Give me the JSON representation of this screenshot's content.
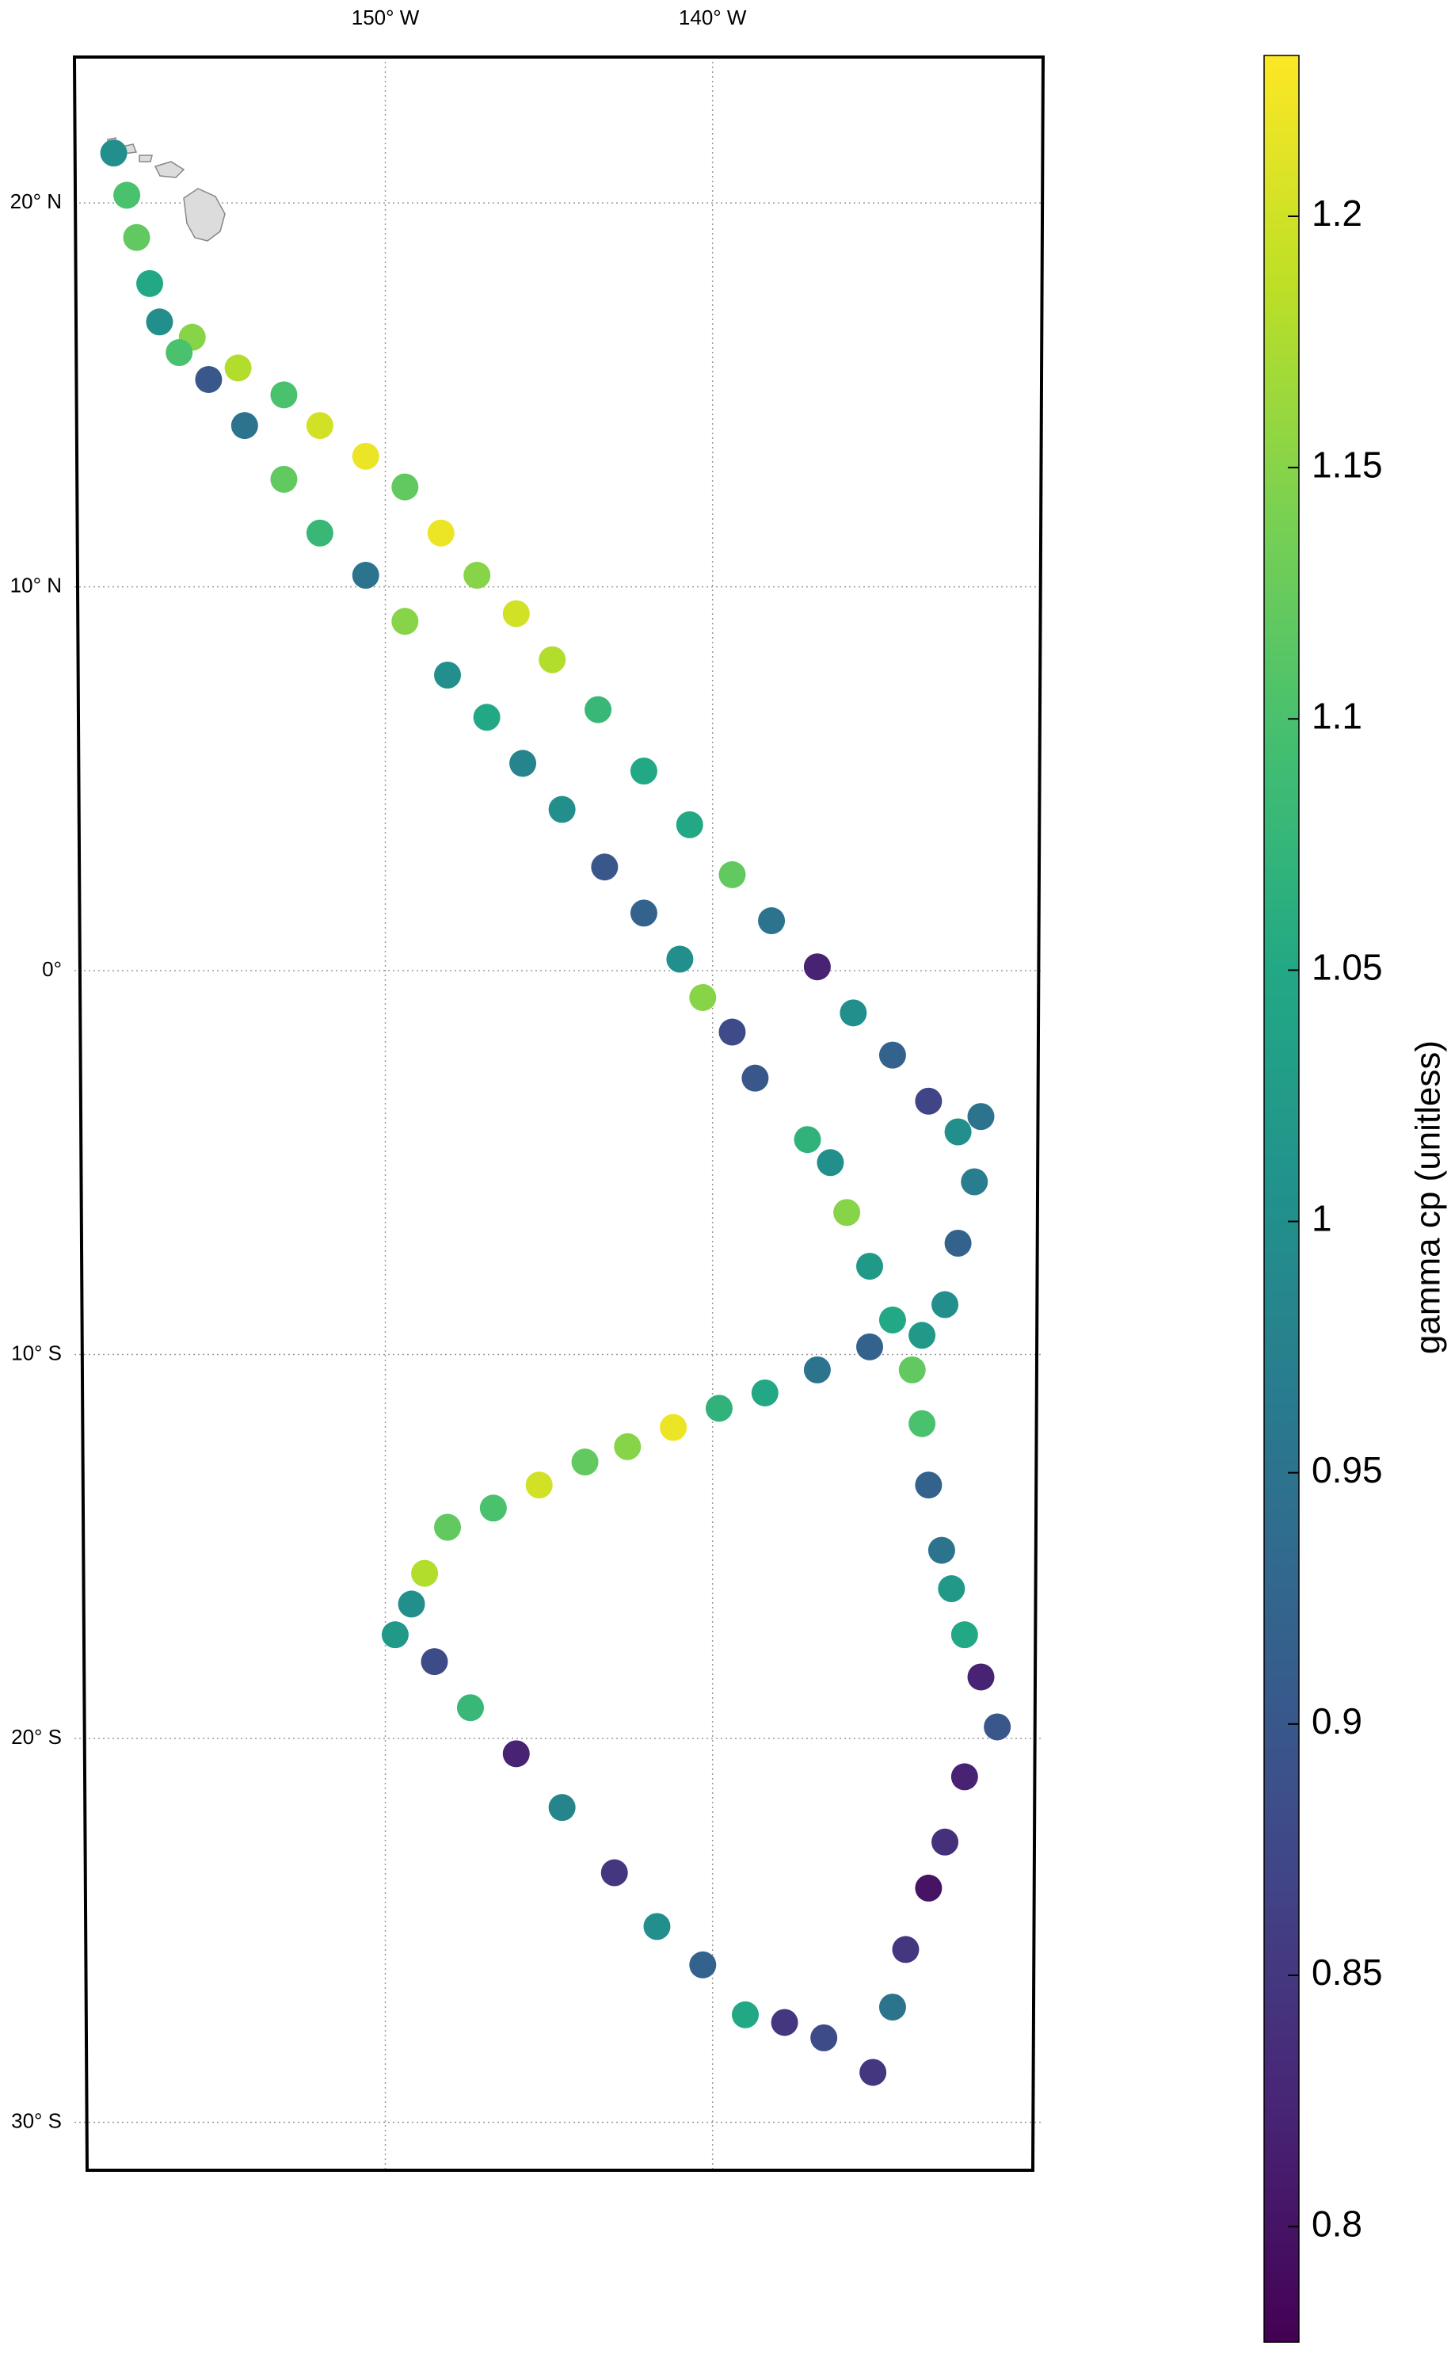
{
  "chart_data": {
    "type": "scatter",
    "colorbar_label": "gamma cp (unitless)",
    "colormap": "viridis",
    "grid": true,
    "xlim": [
      -159.5,
      -129.9
    ],
    "ylim": [
      -31.25,
      23.8
    ],
    "clim": [
      0.777,
      1.232
    ],
    "xticks": [
      {
        "value": -150,
        "label": "150° W"
      },
      {
        "value": -140,
        "label": "140° W"
      }
    ],
    "yticks": [
      {
        "value": 20,
        "label": "20° N"
      },
      {
        "value": 10,
        "label": "10° N"
      },
      {
        "value": 0,
        "label": "0°"
      },
      {
        "value": -10,
        "label": "10° S"
      },
      {
        "value": -20,
        "label": "20° S"
      },
      {
        "value": -30,
        "label": "30° S"
      }
    ],
    "cticks": [
      0.8,
      0.85,
      0.9,
      0.95,
      1,
      1.05,
      1.1,
      1.15,
      1.2
    ],
    "x": [
      -158.3,
      -157.9,
      -157.6,
      -157.2,
      -156.9,
      -155.9,
      -154.5,
      -153.1,
      -152.0,
      -150.6,
      -149.4,
      -148.3,
      -147.2,
      -146.0,
      -144.9,
      -143.5,
      -142.1,
      -140.7,
      -139.4,
      -138.2,
      -136.8,
      -135.7,
      -134.5,
      -133.4,
      -132.5,
      -131.8,
      -132.0,
      -132.5,
      -132.9,
      -133.6,
      -135.2,
      -136.8,
      -138.4,
      -139.8,
      -141.2,
      -142.6,
      -143.9,
      -145.3,
      -146.7,
      -148.1,
      -148.8,
      -149.2,
      -149.7,
      -148.5,
      -147.4,
      -146.0,
      -144.6,
      -143.0,
      -141.7,
      -140.3,
      -139.0,
      -137.8,
      -136.6,
      -135.1,
      -134.5,
      -134.1,
      -133.4,
      -132.9,
      -132.3,
      -131.3,
      -131.8,
      -132.3,
      -132.7,
      -133.0,
      -133.4,
      -133.6,
      -133.9,
      -134.5,
      -135.2,
      -135.9,
      -136.4,
      -137.1,
      -138.7,
      -139.4,
      -140.3,
      -141.0,
      -142.1,
      -143.3,
      -144.6,
      -145.8,
      -146.9,
      -148.1,
      -149.4,
      -150.6,
      -152.0,
      -153.1,
      -154.3,
      -155.4,
      -156.3
    ],
    "y": [
      21.3,
      20.2,
      19.1,
      17.9,
      16.9,
      16.5,
      15.7,
      15.0,
      14.2,
      13.4,
      12.6,
      11.4,
      10.3,
      9.3,
      8.1,
      6.8,
      5.2,
      3.8,
      2.5,
      1.3,
      0.1,
      -1.1,
      -2.2,
      -3.4,
      -4.2,
      -3.8,
      -5.5,
      -7.1,
      -8.7,
      -9.5,
      -9.8,
      -10.4,
      -11.0,
      -11.4,
      -11.9,
      -12.4,
      -12.8,
      -13.4,
      -14.0,
      -14.5,
      -15.7,
      -16.5,
      -17.3,
      -18.0,
      -19.2,
      -20.4,
      -21.8,
      -23.5,
      -24.9,
      -25.9,
      -27.2,
      -27.4,
      -27.8,
      -28.7,
      -27.0,
      -25.5,
      -23.9,
      -22.7,
      -21.0,
      -19.7,
      -18.4,
      -17.3,
      -16.1,
      -15.1,
      -13.4,
      -11.8,
      -10.4,
      -9.1,
      -7.7,
      -6.3,
      -5.0,
      -4.4,
      -2.8,
      -1.6,
      -0.7,
      0.3,
      1.5,
      2.7,
      4.2,
      5.4,
      6.6,
      7.7,
      9.1,
      10.3,
      11.4,
      12.8,
      14.2,
      15.4,
      16.1
    ],
    "values": [
      1.0,
      1.1,
      1.12,
      1.05,
      1.0,
      1.15,
      1.18,
      1.1,
      1.2,
      1.22,
      1.12,
      1.22,
      1.15,
      1.2,
      1.18,
      1.08,
      1.05,
      1.05,
      1.12,
      0.95,
      0.82,
      1.0,
      0.92,
      0.87,
      1.0,
      0.95,
      0.97,
      0.92,
      1.0,
      1.02,
      0.92,
      0.95,
      1.05,
      1.07,
      1.22,
      1.15,
      1.12,
      1.2,
      1.1,
      1.12,
      1.18,
      1.0,
      1.02,
      0.88,
      1.08,
      0.82,
      0.98,
      0.85,
      1.0,
      0.92,
      1.05,
      0.85,
      0.88,
      0.85,
      0.95,
      0.85,
      0.8,
      0.84,
      0.82,
      0.9,
      0.82,
      1.05,
      1.02,
      0.95,
      0.92,
      1.1,
      1.12,
      1.05,
      1.02,
      1.15,
      1.0,
      1.07,
      0.9,
      0.88,
      1.15,
      1.0,
      0.92,
      0.9,
      1.0,
      0.98,
      1.05,
      1.0,
      1.15,
      0.95,
      1.08,
      1.12,
      0.95,
      0.9,
      1.1
    ]
  }
}
